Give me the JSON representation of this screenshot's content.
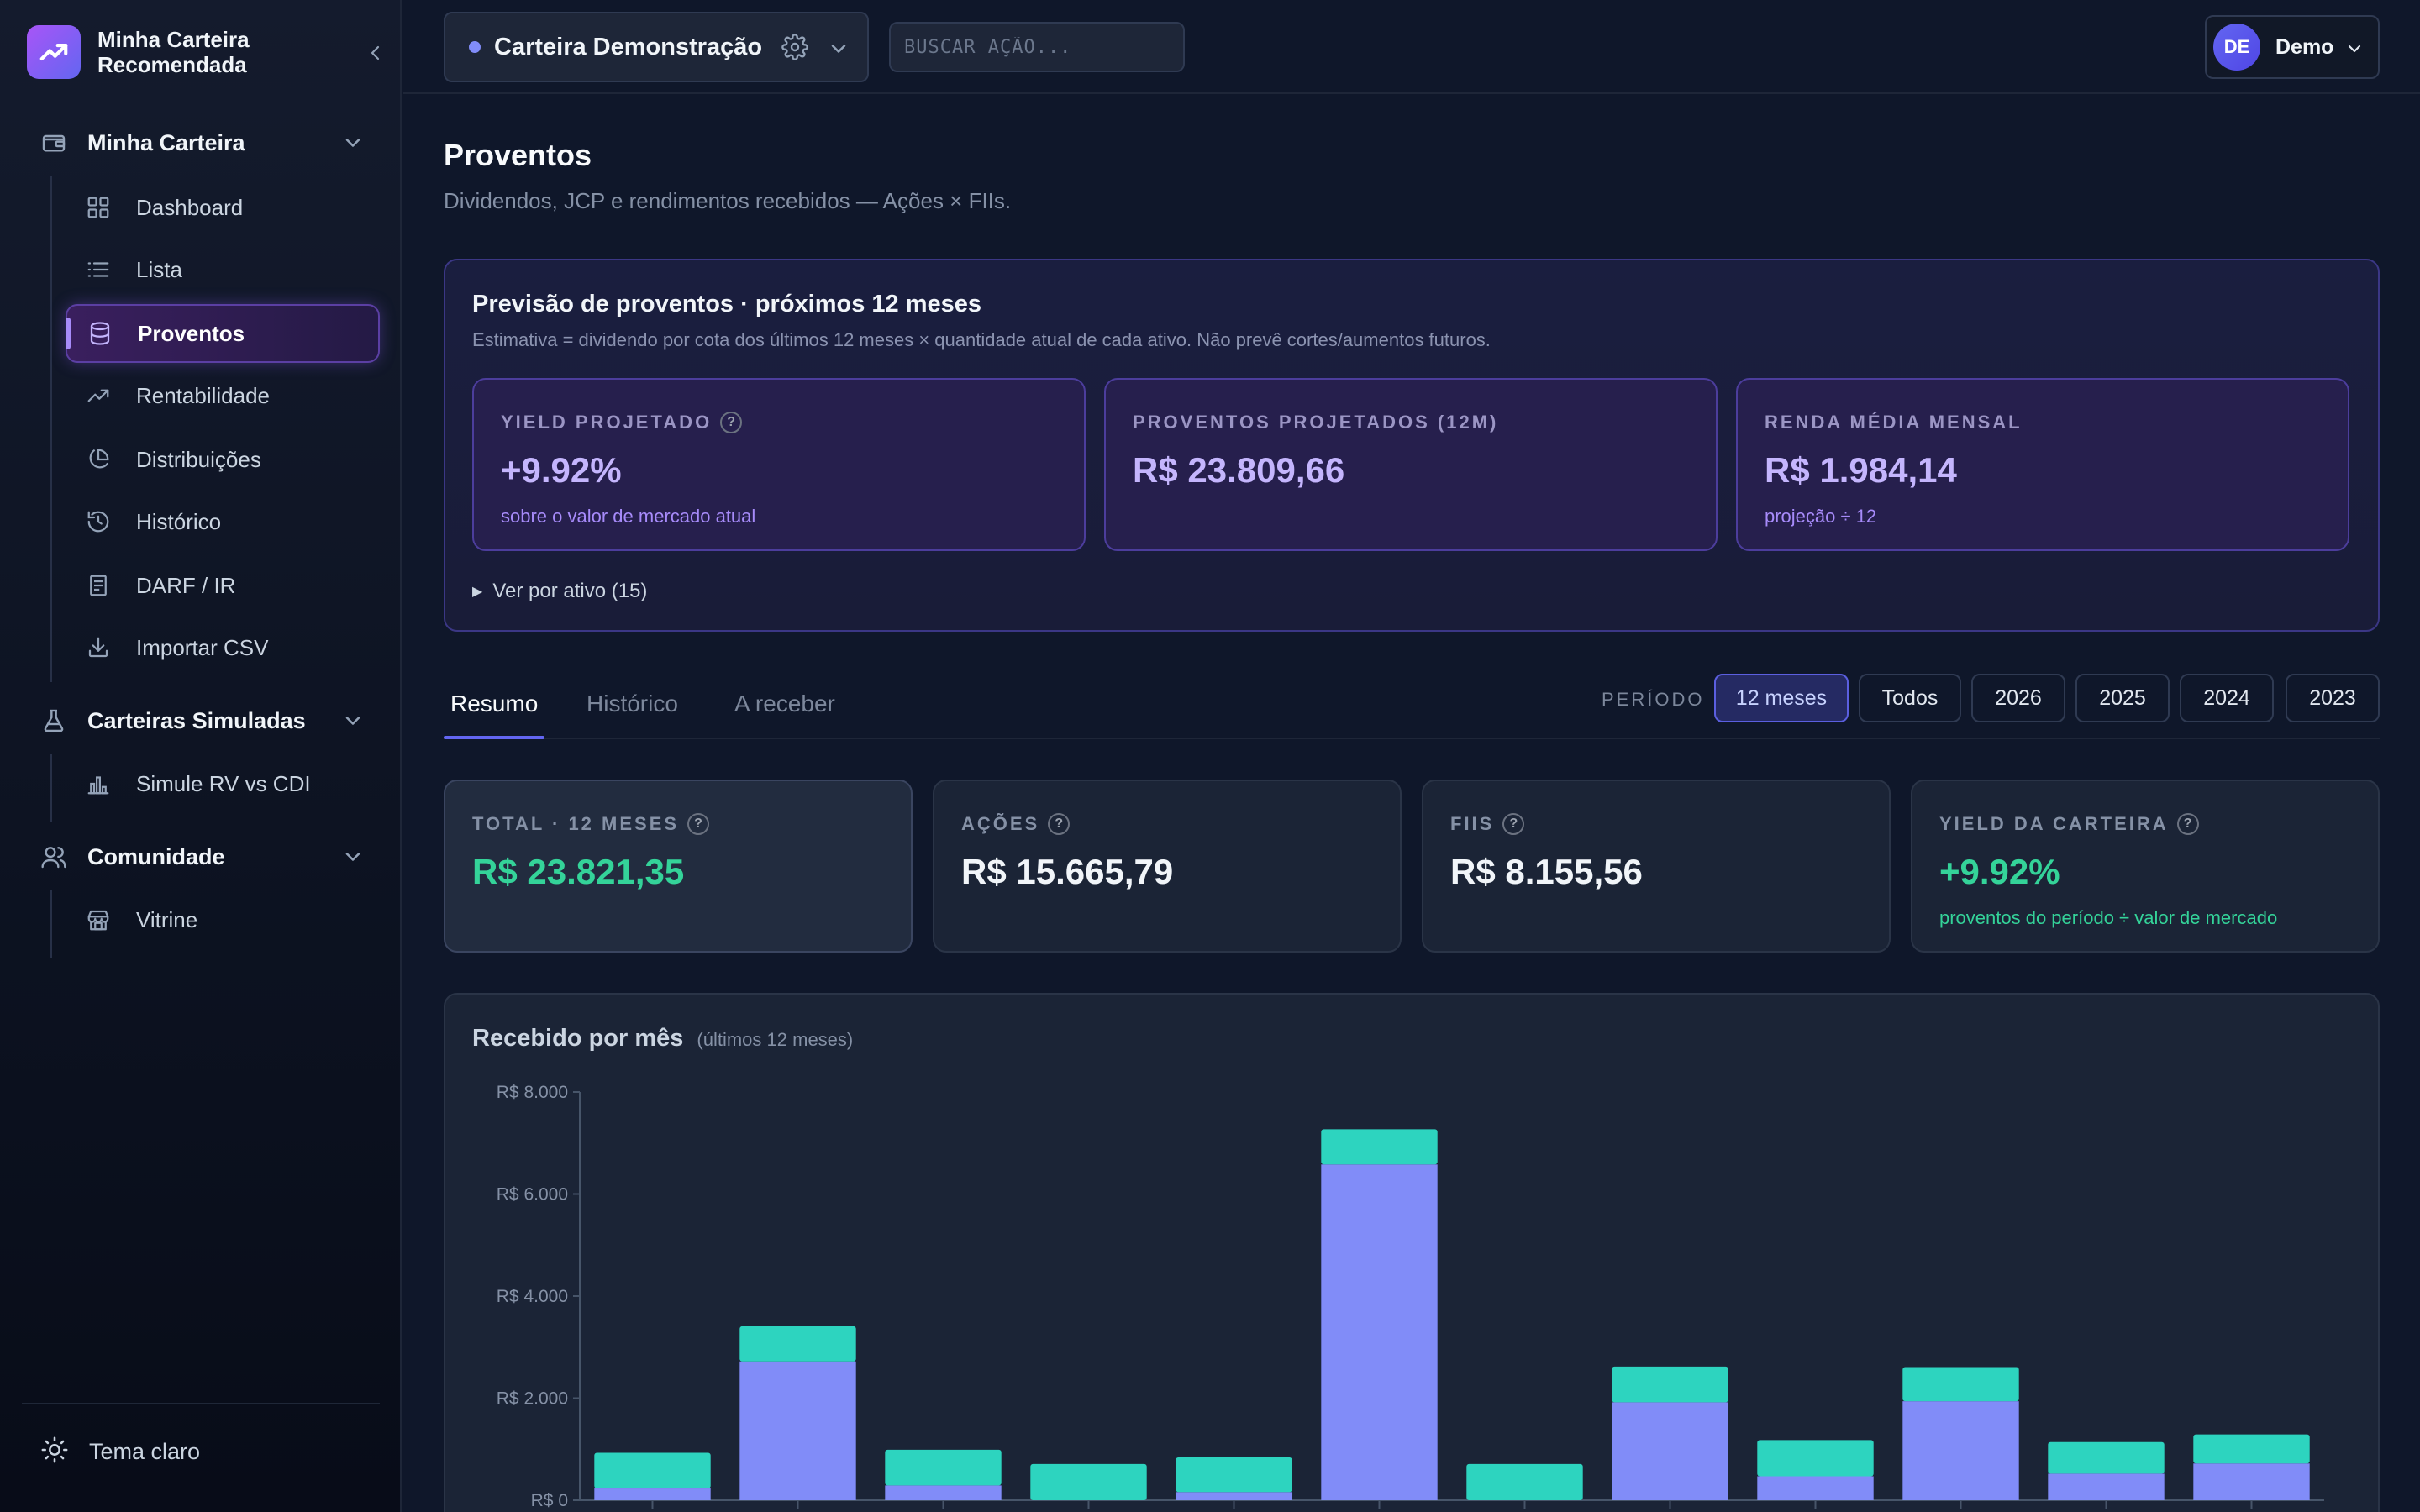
{
  "brand": {
    "name_line1": "Minha Carteira",
    "name_line2": "Recomendada"
  },
  "sidebar": {
    "sections": [
      {
        "label": "Minha Carteira",
        "icon": "wallet-icon"
      },
      {
        "label": "Carteiras Simuladas",
        "icon": "flask-icon"
      },
      {
        "label": "Comunidade",
        "icon": "users-icon"
      }
    ],
    "items": [
      {
        "label": "Dashboard",
        "icon": "grid-icon"
      },
      {
        "label": "Lista",
        "icon": "list-icon"
      },
      {
        "label": "Proventos",
        "icon": "database-icon",
        "active": true
      },
      {
        "label": "Rentabilidade",
        "icon": "trending-up-icon"
      },
      {
        "label": "Distribuições",
        "icon": "pie-chart-icon"
      },
      {
        "label": "Histórico",
        "icon": "history-icon"
      },
      {
        "label": "DARF / IR",
        "icon": "receipt-icon"
      },
      {
        "label": "Importar CSV",
        "icon": "download-icon"
      },
      {
        "label": "Simule RV vs CDI",
        "icon": "bar-chart-icon"
      },
      {
        "label": "Vitrine",
        "icon": "store-icon"
      }
    ],
    "theme_toggle": "Tema claro"
  },
  "topbar": {
    "portfolio_name": "Carteira Demonstração",
    "search_placeholder": "BUSCAR AÇÃO...",
    "user_initials": "DE",
    "user_name": "Demo"
  },
  "page": {
    "title": "Proventos",
    "subtitle": "Dividendos, JCP e rendimentos recebidos — Ações × FIIs."
  },
  "forecast": {
    "title": "Previsão de proventos · próximos 12 meses",
    "description": "Estimativa = dividendo por cota dos últimos 12 meses × quantidade atual de cada ativo. Não prevê cortes/aumentos futuros.",
    "cards": [
      {
        "label": "YIELD PROJETADO",
        "value": "+9.92%",
        "sub": "sobre o valor de mercado atual",
        "help": true
      },
      {
        "label": "PROVENTOS PROJETADOS (12M)",
        "value": "R$ 23.809,66",
        "sub": "",
        "help": false
      },
      {
        "label": "RENDA MÉDIA MENSAL",
        "value": "R$ 1.984,14",
        "sub": "projeção ÷ 12",
        "help": false
      }
    ],
    "expand_label": "Ver por ativo (15)"
  },
  "tabs": [
    "Resumo",
    "Histórico",
    "A receber"
  ],
  "period": {
    "label": "PERÍODO",
    "options": [
      "12 meses",
      "Todos",
      "2026",
      "2025",
      "2024",
      "2023"
    ],
    "selected": "12 meses"
  },
  "summary": [
    {
      "label": "TOTAL · 12 MESES",
      "value": "R$ 23.821,35",
      "sub": "",
      "green": true
    },
    {
      "label": "AÇÕES",
      "value": "R$ 15.665,79",
      "sub": "",
      "green": false
    },
    {
      "label": "FIIS",
      "value": "R$ 8.155,56",
      "sub": "",
      "green": false
    },
    {
      "label": "YIELD DA CARTEIRA",
      "value": "+9.92%",
      "sub": "proventos do período ÷ valor de mercado",
      "green": true
    }
  ],
  "chart": {
    "title": "Recebido por mês",
    "subtitle": "(últimos 12 meses)"
  },
  "chart_data": {
    "type": "bar",
    "stacked": true,
    "categories": [
      "",
      "",
      "",
      "",
      "",
      "",
      "",
      "",
      "",
      "",
      "",
      ""
    ],
    "series": [
      {
        "name": "",
        "color": "#818cf8",
        "values": [
          230,
          2720,
          290,
          0,
          160,
          6580,
          0,
          1920,
          470,
          1940,
          520,
          720
        ]
      },
      {
        "name": "",
        "color": "#2dd4bf",
        "values": [
          700,
          690,
          700,
          710,
          680,
          690,
          710,
          700,
          710,
          670,
          620,
          570
        ]
      }
    ],
    "y_ticks": [
      "R$ 0",
      "R$ 2.000",
      "R$ 4.000",
      "R$ 6.000",
      "R$ 8.000"
    ],
    "ylim": [
      0,
      8000
    ],
    "grid": false
  },
  "colors": {
    "accent": "#6366f1",
    "purple": "#a78bfa",
    "green": "#34d399",
    "bg": "#0f172a"
  }
}
